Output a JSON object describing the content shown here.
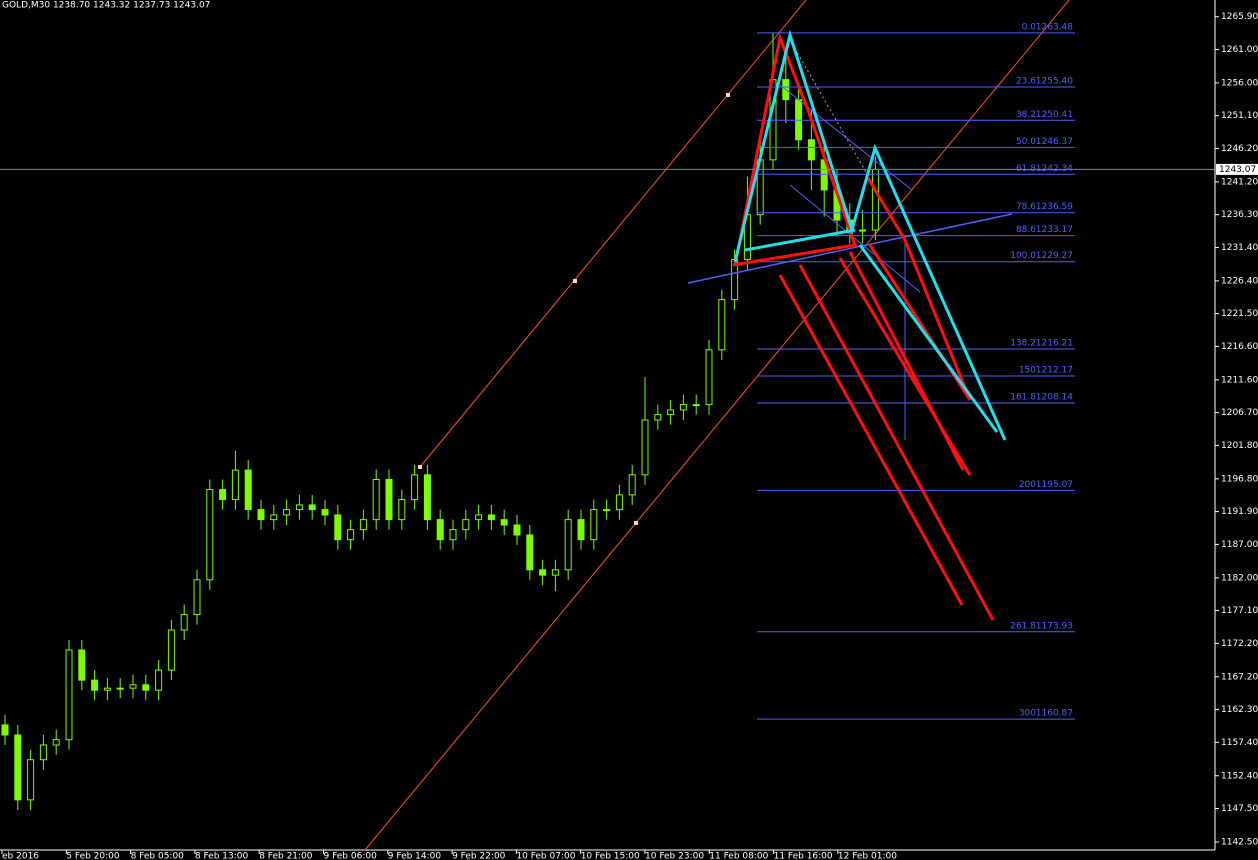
{
  "chart_data": {
    "type": "candlestick",
    "title": "GOLD,M30  1238.70 1243.32 1237.73 1243.07",
    "x_labels": [
      "eb 2016",
      "5 Feb 20:00",
      "8 Feb 05:00",
      "8 Feb 13:00",
      "8 Feb 21:00",
      "9 Feb 06:00",
      "9 Feb 14:00",
      "9 Feb 22:00",
      "10 Feb 07:00",
      "10 Feb 15:00",
      "10 Feb 23:00",
      "11 Feb 08:00",
      "11 Feb 16:00",
      "12 Feb 01:00"
    ],
    "ohlc": [
      [
        1160.0,
        1161.5,
        1157.0,
        1158.5
      ],
      [
        1158.5,
        1160.0,
        1147.3,
        1148.8
      ],
      [
        1148.8,
        1156.3,
        1147.3,
        1154.8
      ],
      [
        1154.8,
        1158.5,
        1153.3,
        1157.0
      ],
      [
        1157.0,
        1159.3,
        1155.5,
        1157.8
      ],
      [
        1157.8,
        1172.7,
        1156.3,
        1171.2
      ],
      [
        1171.2,
        1172.7,
        1165.2,
        1166.7
      ],
      [
        1166.7,
        1168.2,
        1163.7,
        1165.2
      ],
      [
        1165.2,
        1167.0,
        1163.7,
        1165.5
      ],
      [
        1165.5,
        1167.0,
        1164.0,
        1165.5
      ],
      [
        1165.5,
        1167.5,
        1164.0,
        1166.0
      ],
      [
        1166.0,
        1167.5,
        1163.7,
        1165.2
      ],
      [
        1165.2,
        1169.7,
        1163.7,
        1168.2
      ],
      [
        1168.2,
        1175.7,
        1166.7,
        1174.2
      ],
      [
        1174.2,
        1178.0,
        1172.7,
        1176.5
      ],
      [
        1176.5,
        1183.2,
        1175.0,
        1181.7
      ],
      [
        1181.7,
        1196.7,
        1180.2,
        1195.2
      ],
      [
        1195.2,
        1196.7,
        1192.2,
        1193.7
      ],
      [
        1193.7,
        1201.0,
        1192.2,
        1198.1
      ],
      [
        1198.1,
        1199.6,
        1190.7,
        1192.2
      ],
      [
        1192.2,
        1193.7,
        1189.2,
        1190.7
      ],
      [
        1190.7,
        1192.9,
        1189.2,
        1191.4
      ],
      [
        1191.4,
        1193.7,
        1189.9,
        1192.2
      ],
      [
        1192.2,
        1194.4,
        1190.7,
        1192.9
      ],
      [
        1192.9,
        1194.4,
        1190.7,
        1192.2
      ],
      [
        1192.2,
        1193.7,
        1189.9,
        1191.4
      ],
      [
        1191.4,
        1192.9,
        1186.2,
        1187.7
      ],
      [
        1187.7,
        1190.7,
        1186.2,
        1189.2
      ],
      [
        1189.2,
        1192.2,
        1187.7,
        1190.7
      ],
      [
        1190.7,
        1198.2,
        1189.2,
        1196.7
      ],
      [
        1196.7,
        1198.2,
        1189.2,
        1190.7
      ],
      [
        1190.7,
        1195.2,
        1189.2,
        1193.7
      ],
      [
        1193.7,
        1198.9,
        1192.2,
        1197.4
      ],
      [
        1197.4,
        1198.9,
        1189.2,
        1190.7
      ],
      [
        1190.7,
        1192.2,
        1186.2,
        1187.7
      ],
      [
        1187.7,
        1190.7,
        1186.2,
        1189.2
      ],
      [
        1189.2,
        1192.2,
        1187.7,
        1190.7
      ],
      [
        1190.7,
        1192.9,
        1189.2,
        1191.4
      ],
      [
        1191.4,
        1192.9,
        1189.2,
        1190.7
      ],
      [
        1190.7,
        1192.2,
        1188.4,
        1189.9
      ],
      [
        1189.9,
        1191.4,
        1186.9,
        1188.4
      ],
      [
        1188.4,
        1189.9,
        1181.7,
        1183.2
      ],
      [
        1183.2,
        1184.7,
        1180.9,
        1182.4
      ],
      [
        1182.4,
        1184.7,
        1180.0,
        1183.2
      ],
      [
        1183.2,
        1192.2,
        1181.7,
        1190.7
      ],
      [
        1190.7,
        1192.2,
        1186.2,
        1187.7
      ],
      [
        1187.7,
        1193.7,
        1186.2,
        1192.2
      ],
      [
        1192.2,
        1193.7,
        1190.7,
        1192.2
      ],
      [
        1192.2,
        1195.9,
        1190.7,
        1194.4
      ],
      [
        1194.4,
        1198.9,
        1192.9,
        1197.4
      ],
      [
        1197.4,
        1212.0,
        1195.9,
        1205.6
      ],
      [
        1205.6,
        1207.9,
        1204.1,
        1206.4
      ],
      [
        1206.4,
        1208.6,
        1204.9,
        1207.1
      ],
      [
        1207.1,
        1209.4,
        1205.6,
        1207.9
      ],
      [
        1207.9,
        1209.4,
        1206.4,
        1207.9
      ],
      [
        1207.9,
        1217.6,
        1206.4,
        1216.1
      ],
      [
        1216.1,
        1225.1,
        1214.6,
        1223.6
      ],
      [
        1223.6,
        1231.1,
        1222.1,
        1229.6
      ],
      [
        1229.6,
        1242.0,
        1228.1,
        1236.3
      ],
      [
        1236.3,
        1248.0,
        1234.8,
        1244.5
      ],
      [
        1244.5,
        1263.5,
        1243.0,
        1256.5
      ],
      [
        1256.5,
        1260.0,
        1250.0,
        1253.5
      ],
      [
        1253.5,
        1256.0,
        1246.0,
        1247.5
      ],
      [
        1247.5,
        1252.0,
        1240.0,
        1244.5
      ],
      [
        1244.5,
        1247.0,
        1236.0,
        1240.0
      ],
      [
        1240.0,
        1243.0,
        1233.0,
        1235.5
      ],
      [
        1235.5,
        1238.0,
        1232.0,
        1234.0
      ],
      [
        1234.0,
        1237.0,
        1232.0,
        1234.0
      ],
      [
        1234.0,
        1245.0,
        1232.5,
        1243.07
      ]
    ],
    "ylim": [
      1141.3,
      1268.4
    ],
    "yticks": [
      {
        "value": 1265.9,
        "label": "1265.90"
      },
      {
        "value": 1261.0,
        "label": "1261.00"
      },
      {
        "value": 1256.0,
        "label": "1256.00"
      },
      {
        "value": 1251.1,
        "label": "1251.10"
      },
      {
        "value": 1246.2,
        "label": "1246.20"
      },
      {
        "value": 1241.2,
        "label": "1241.20"
      },
      {
        "value": 1236.3,
        "label": "1236.30"
      },
      {
        "value": 1231.4,
        "label": "1231.40"
      },
      {
        "value": 1226.4,
        "label": "1226.40"
      },
      {
        "value": 1221.5,
        "label": "1221.50"
      },
      {
        "value": 1216.6,
        "label": "1216.60"
      },
      {
        "value": 1211.6,
        "label": "1211.60"
      },
      {
        "value": 1206.7,
        "label": "1206.70"
      },
      {
        "value": 1201.8,
        "label": "1201.80"
      },
      {
        "value": 1196.8,
        "label": "1196.80"
      },
      {
        "value": 1191.9,
        "label": "1191.90"
      },
      {
        "value": 1187.0,
        "label": "1187.00"
      },
      {
        "value": 1182.0,
        "label": "1182.00"
      },
      {
        "value": 1177.1,
        "label": "1177.10"
      },
      {
        "value": 1172.2,
        "label": "1172.20"
      },
      {
        "value": 1167.2,
        "label": "1167.20"
      },
      {
        "value": 1162.3,
        "label": "1162.30"
      },
      {
        "value": 1157.4,
        "label": "1157.40"
      },
      {
        "value": 1152.4,
        "label": "1152.40"
      },
      {
        "value": 1147.5,
        "label": "1147.50"
      },
      {
        "value": 1142.5,
        "label": "1142.50"
      }
    ],
    "current_price": 1243.07,
    "fib_levels": [
      {
        "level": "0.0",
        "price": 1263.48
      },
      {
        "level": "23.6",
        "price": {
          "value": 1255.4,
          "label": "1255.40"
        }
      },
      {
        "level": "38.2",
        "price": 1250.41
      },
      {
        "level": "50.0",
        "price": 1246.37
      },
      {
        "level": "61.8",
        "price": 1242.34
      },
      {
        "level": "78.6",
        "price": 1236.59
      },
      {
        "level": "88.6",
        "price": 1233.17
      },
      {
        "level": "100.0",
        "price": 1229.27
      },
      {
        "level": "138.2",
        "price": 1216.21
      },
      {
        "level": "150",
        "price": 1212.17
      },
      {
        "level": "161.8",
        "price": 1208.14
      },
      {
        "level": "200",
        "price": 1195.07
      },
      {
        "level": "261.8",
        "price": 1173.93
      },
      {
        "level": "300",
        "price": 1160.87
      }
    ],
    "candle_color": "#7cfc00",
    "fib_color": "#5060ff"
  }
}
